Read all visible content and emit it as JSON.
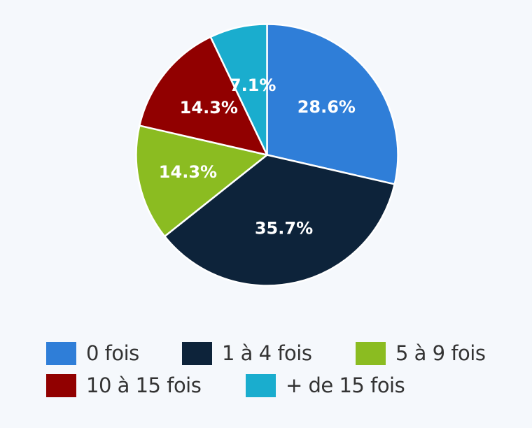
{
  "chart_data": {
    "type": "pie",
    "title": "",
    "categories": [
      "0 fois",
      "1 à 4 fois",
      "5 à 9 fois",
      "10 à 15 fois",
      "+ de 15 fois"
    ],
    "values": [
      28.6,
      35.7,
      14.3,
      14.3,
      7.1
    ],
    "labels": [
      "28.6%",
      "35.7%",
      "14.3%",
      "14.3%",
      "7.1%"
    ],
    "colors": [
      "#2f7ed8",
      "#0d233a",
      "#8bbc21",
      "#910000",
      "#1aadce"
    ],
    "start_angle_deg": 0,
    "direction": "clockwise",
    "legend_position": "bottom"
  },
  "legend": {
    "items": [
      {
        "label": "0 fois",
        "color": "#2f7ed8"
      },
      {
        "label": "1 à 4 fois",
        "color": "#0d233a"
      },
      {
        "label": "5 à 9 fois",
        "color": "#8bbc21"
      },
      {
        "label": "10 à 15 fois",
        "color": "#910000"
      },
      {
        "label": "+ de 15 fois",
        "color": "#1aadce"
      }
    ]
  }
}
